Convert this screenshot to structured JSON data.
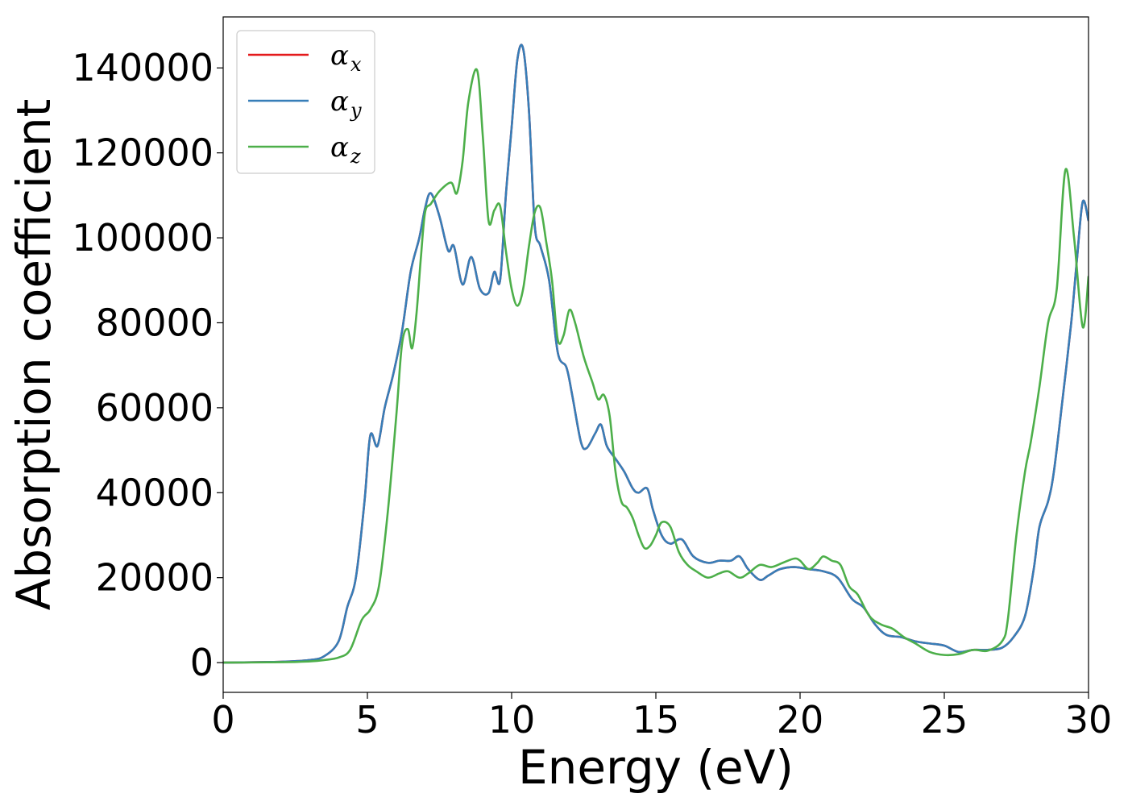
{
  "chart_data": {
    "type": "line",
    "title": "",
    "xlabel": "Energy (eV)",
    "ylabel": "Absorption coefficient",
    "xlim": [
      0,
      30
    ],
    "ylim": [
      -7000,
      152000
    ],
    "xticks": [
      0,
      5,
      10,
      15,
      20,
      25,
      30
    ],
    "yticks": [
      0,
      20000,
      40000,
      60000,
      80000,
      100000,
      120000,
      140000
    ],
    "grid": false,
    "legend_position": "top-left",
    "series": [
      {
        "name": "α_x",
        "legend_symbol": "α",
        "legend_sub": "x",
        "color": "#e41a1c",
        "x": [
          0,
          2,
          3,
          3.5,
          4,
          4.3,
          4.6,
          4.9,
          5.1,
          5.35,
          5.6,
          5.9,
          6.2,
          6.5,
          6.8,
          7.0,
          7.2,
          7.5,
          7.8,
          8.0,
          8.3,
          8.6,
          8.9,
          9.2,
          9.4,
          9.6,
          9.8,
          10.0,
          10.2,
          10.4,
          10.6,
          10.8,
          11.0,
          11.3,
          11.6,
          11.9,
          12.1,
          12.4,
          12.6,
          12.9,
          13.1,
          13.3,
          13.6,
          13.9,
          14.2,
          14.4,
          14.7,
          14.9,
          15.2,
          15.5,
          15.9,
          16.3,
          16.8,
          17.2,
          17.6,
          17.9,
          18.2,
          18.6,
          18.9,
          19.3,
          19.8,
          20.3,
          20.8,
          21.3,
          21.8,
          22.2,
          22.6,
          23.0,
          23.5,
          24.0,
          24.5,
          25.0,
          25.5,
          26.0,
          26.5,
          27.0,
          27.4,
          27.8,
          28.1,
          28.3,
          28.6,
          28.8,
          29.1,
          29.4,
          29.6,
          29.8,
          30.0
        ],
        "values": [
          0,
          200,
          600,
          1500,
          5000,
          13000,
          20000,
          38000,
          53500,
          51000,
          60000,
          68000,
          78000,
          92000,
          100000,
          107000,
          110500,
          105000,
          97000,
          98000,
          89000,
          95500,
          88000,
          87000,
          92000,
          90000,
          110000,
          126000,
          142000,
          144500,
          130000,
          103000,
          98000,
          90000,
          73000,
          69500,
          63000,
          52000,
          50500,
          54000,
          56000,
          51000,
          48000,
          45000,
          41000,
          40000,
          41000,
          36000,
          30000,
          28000,
          29000,
          25000,
          23500,
          24000,
          24000,
          25000,
          22000,
          19500,
          20500,
          22000,
          22500,
          22000,
          21500,
          20000,
          15000,
          13000,
          9000,
          6500,
          6000,
          5000,
          4500,
          4000,
          2500,
          3000,
          3000,
          3500,
          6000,
          11000,
          22000,
          32000,
          38000,
          45000,
          62000,
          80000,
          95000,
          108500,
          104000
        ]
      },
      {
        "name": "α_y",
        "legend_symbol": "α",
        "legend_sub": "y",
        "color": "#377eb8",
        "x": [
          0,
          2,
          3,
          3.5,
          4,
          4.3,
          4.6,
          4.9,
          5.1,
          5.35,
          5.6,
          5.9,
          6.2,
          6.5,
          6.8,
          7.0,
          7.2,
          7.5,
          7.8,
          8.0,
          8.3,
          8.6,
          8.9,
          9.2,
          9.4,
          9.6,
          9.8,
          10.0,
          10.2,
          10.4,
          10.6,
          10.8,
          11.0,
          11.3,
          11.6,
          11.9,
          12.1,
          12.4,
          12.6,
          12.9,
          13.1,
          13.3,
          13.6,
          13.9,
          14.2,
          14.4,
          14.7,
          14.9,
          15.2,
          15.5,
          15.9,
          16.3,
          16.8,
          17.2,
          17.6,
          17.9,
          18.2,
          18.6,
          18.9,
          19.3,
          19.8,
          20.3,
          20.8,
          21.3,
          21.8,
          22.2,
          22.6,
          23.0,
          23.5,
          24.0,
          24.5,
          25.0,
          25.5,
          26.0,
          26.5,
          27.0,
          27.4,
          27.8,
          28.1,
          28.3,
          28.6,
          28.8,
          29.1,
          29.4,
          29.6,
          29.8,
          30.0
        ],
        "values": [
          0,
          200,
          600,
          1500,
          5000,
          13000,
          20000,
          38000,
          53500,
          51000,
          60000,
          68000,
          78000,
          92000,
          100000,
          107000,
          110500,
          105000,
          97000,
          98000,
          89000,
          95500,
          88000,
          87000,
          92000,
          90000,
          110000,
          126000,
          142000,
          144500,
          130000,
          103000,
          98000,
          90000,
          73000,
          69500,
          63000,
          52000,
          50500,
          54000,
          56000,
          51000,
          48000,
          45000,
          41000,
          40000,
          41000,
          36000,
          30000,
          28000,
          29000,
          25000,
          23500,
          24000,
          24000,
          25000,
          22000,
          19500,
          20500,
          22000,
          22500,
          22000,
          21500,
          20000,
          15000,
          13000,
          9000,
          6500,
          6000,
          5000,
          4500,
          4000,
          2500,
          3000,
          3000,
          3500,
          6000,
          11000,
          22000,
          32000,
          38000,
          45000,
          62000,
          80000,
          95000,
          108500,
          104000
        ]
      },
      {
        "name": "α_z",
        "legend_symbol": "α",
        "legend_sub": "z",
        "color": "#4daf4a",
        "x": [
          0,
          2,
          3,
          3.5,
          4,
          4.4,
          4.8,
          5.1,
          5.4,
          5.7,
          6.0,
          6.2,
          6.4,
          6.55,
          6.7,
          6.85,
          7.0,
          7.2,
          7.5,
          7.9,
          8.1,
          8.3,
          8.5,
          8.8,
          9.0,
          9.2,
          9.4,
          9.6,
          9.8,
          10.0,
          10.2,
          10.4,
          10.6,
          10.8,
          11.0,
          11.2,
          11.4,
          11.6,
          11.8,
          12.0,
          12.2,
          12.5,
          12.8,
          13.0,
          13.2,
          13.4,
          13.6,
          13.8,
          14.0,
          14.2,
          14.4,
          14.6,
          14.8,
          15.0,
          15.2,
          15.5,
          15.8,
          16.1,
          16.4,
          16.8,
          17.2,
          17.5,
          17.9,
          18.2,
          18.6,
          19.0,
          19.4,
          19.8,
          20.0,
          20.3,
          20.6,
          20.8,
          21.1,
          21.4,
          21.7,
          22.0,
          22.4,
          22.8,
          23.2,
          23.6,
          24.0,
          24.5,
          25.0,
          25.5,
          26.0,
          26.5,
          27.0,
          27.2,
          27.5,
          27.8,
          28.0,
          28.3,
          28.6,
          28.9,
          29.2,
          29.5,
          29.8,
          30.0
        ],
        "values": [
          0,
          100,
          300,
          600,
          1200,
          3000,
          10000,
          12500,
          18000,
          35000,
          58000,
          75000,
          78500,
          74000,
          82000,
          95000,
          106000,
          108000,
          111000,
          113000,
          110500,
          118000,
          132000,
          139500,
          124000,
          104000,
          106500,
          107500,
          97000,
          88000,
          84000,
          88000,
          98000,
          106000,
          107000,
          99000,
          90000,
          76000,
          77000,
          83000,
          80000,
          72000,
          66000,
          62000,
          63000,
          58000,
          45000,
          38000,
          36500,
          34000,
          30000,
          27000,
          27500,
          30000,
          33000,
          32000,
          26000,
          23000,
          21500,
          20000,
          21000,
          21500,
          20000,
          21000,
          23000,
          22500,
          23500,
          24500,
          24000,
          22000,
          23500,
          25000,
          24000,
          23000,
          18000,
          16000,
          11000,
          9000,
          8000,
          6000,
          4500,
          2500,
          1800,
          2000,
          3000,
          2800,
          5000,
          10000,
          30000,
          45000,
          52000,
          65000,
          80000,
          88000,
          116000,
          100000,
          79000,
          91000
        ]
      }
    ]
  }
}
